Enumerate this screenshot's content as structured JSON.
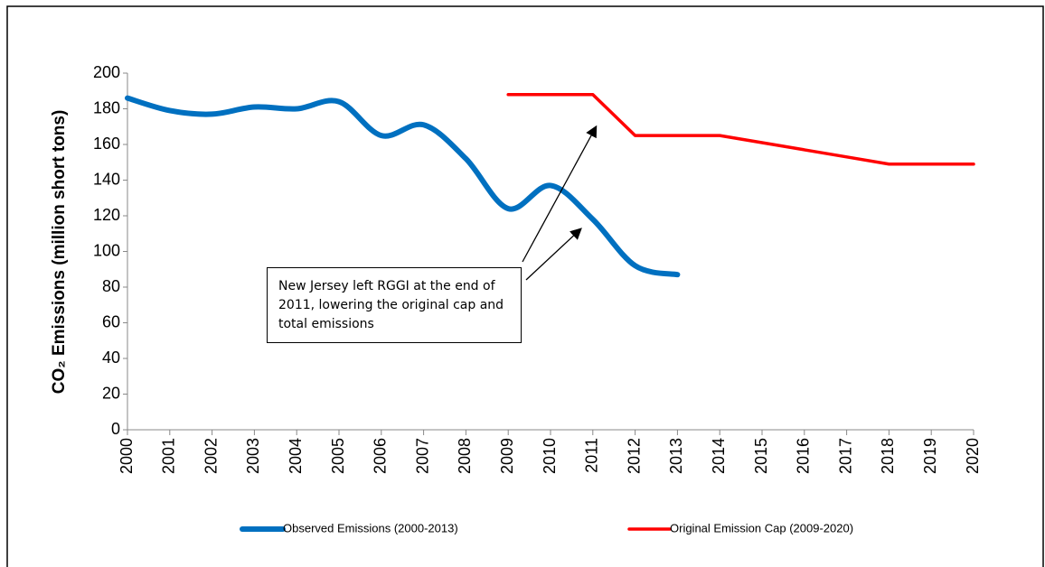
{
  "chart_data": {
    "type": "line",
    "categories": [
      "2000",
      "2001",
      "2002",
      "2003",
      "2004",
      "2005",
      "2006",
      "2007",
      "2008",
      "2009",
      "2010",
      "2011",
      "2012",
      "2013",
      "2014",
      "2015",
      "2016",
      "2017",
      "2018",
      "2019",
      "2020"
    ],
    "y_label": "CO₂ Emissions (million short tons)",
    "ylim": [
      0,
      200
    ],
    "yticks": [
      0,
      20,
      40,
      60,
      80,
      100,
      120,
      140,
      160,
      180,
      200
    ],
    "series": [
      {
        "name": "Observed Emissions (2000-2013)",
        "color": "#0070c0",
        "smooth": true,
        "values": [
          186,
          179,
          177,
          181,
          180,
          184,
          165,
          171,
          152,
          124,
          137,
          118,
          92,
          87,
          null,
          null,
          null,
          null,
          null,
          null,
          null
        ]
      },
      {
        "name": "Original Emission Cap (2009-2020)",
        "color": "#ff0000",
        "smooth": false,
        "values": [
          null,
          null,
          null,
          null,
          null,
          null,
          null,
          null,
          null,
          188,
          188,
          188,
          165,
          165,
          165,
          161,
          157,
          153,
          149,
          149,
          149
        ]
      }
    ],
    "annotation": "New Jersey left RGGI at the end of 2011, lowering the original cap and total emissions"
  }
}
